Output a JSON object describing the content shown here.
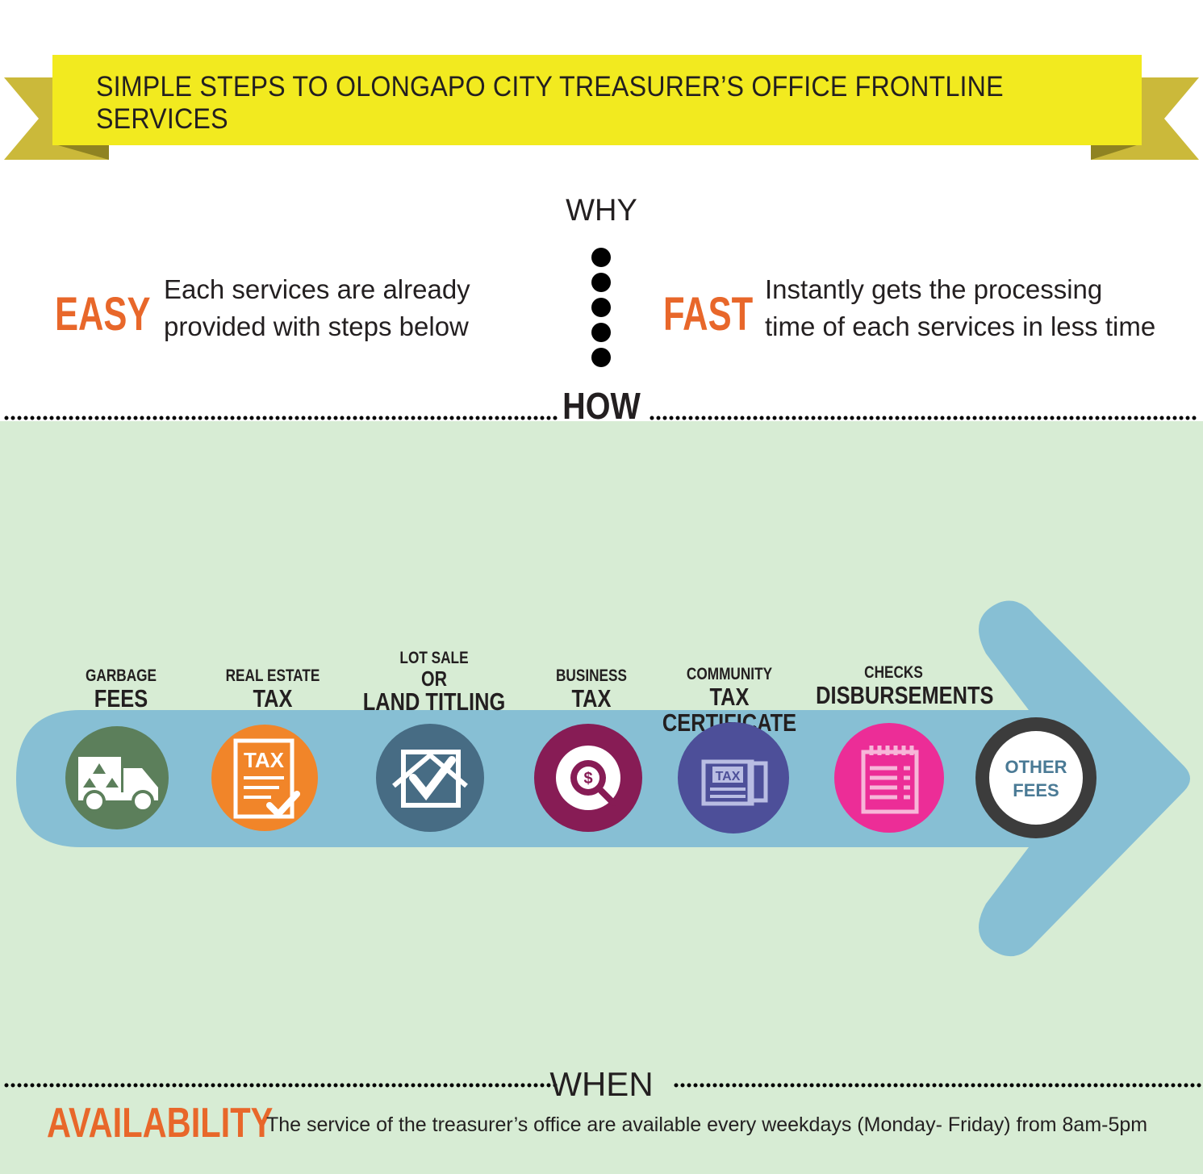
{
  "banner": {
    "title": "SIMPLE STEPS TO OLONGAPO CITY TREASURER’S OFFICE FRONTLINE SERVICES"
  },
  "why": {
    "heading": "WHY",
    "easy": {
      "keyword": "EASY",
      "line1": "Each services are already",
      "line2": "provided with steps below"
    },
    "fast": {
      "keyword": "FAST",
      "line1": "Instantly gets the processing",
      "line2": "time of each services in less time"
    }
  },
  "how": {
    "heading": "HOW"
  },
  "services": [
    {
      "small": "GARBAGE",
      "large": "FEES",
      "icon": "garbage-truck-icon",
      "color": "#5c7f5b"
    },
    {
      "small": "REAL ESTATE",
      "large": "TAX",
      "icon": "tax-document-icon",
      "color": "#f18529",
      "icon_text": "TAX"
    },
    {
      "small": "LOT SALE",
      "mid": "OR",
      "large": "LAND TITLING",
      "icon": "house-check-icon",
      "color": "#476c84"
    },
    {
      "small": "BUSINESS",
      "large": "TAX",
      "icon": "dollar-magnifier-icon",
      "color": "#871c55"
    },
    {
      "small": "COMMUNITY",
      "large": "TAX CERTIFICATE",
      "icon": "tax-certificate-icon",
      "color": "#4d4f99",
      "icon_text": "TAX"
    },
    {
      "small": "CHECKS",
      "large": "DISBURSEMENTS",
      "icon": "notepad-icon",
      "color": "#ec2d97"
    },
    {
      "line1": "OTHER",
      "line2": "FEES",
      "color": "#3c3c3c"
    }
  ],
  "when": {
    "heading": "WHEN",
    "keyword": "AVAILABILITY",
    "description": "The service of the treasurer’s office are available every weekdays (Monday- Friday) from 8am-5pm"
  },
  "colors": {
    "banner": "#f2ea1f",
    "ribbon": "#cbb93a",
    "accent": "#e8672a",
    "arrow": "#87bfd4",
    "background": "#d7ecd4"
  }
}
